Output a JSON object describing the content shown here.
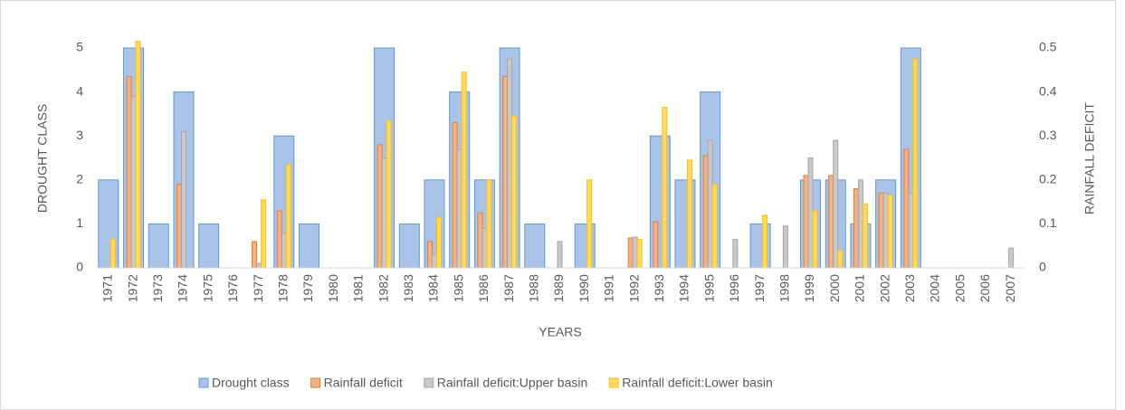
{
  "chart_data": {
    "type": "bar",
    "categories": [
      "1971",
      "1972",
      "1973",
      "1974",
      "1975",
      "1976",
      "1977",
      "1978",
      "1979",
      "1980",
      "1981",
      "1982",
      "1983",
      "1984",
      "1985",
      "1986",
      "1987",
      "1988",
      "1989",
      "1990",
      "1991",
      "1992",
      "1993",
      "1994",
      "1995",
      "1996",
      "1997",
      "1998",
      "1999",
      "2000",
      "2001",
      "2002",
      "2003",
      "2004",
      "2005",
      "2006",
      "2007"
    ],
    "x_label": "YEARS",
    "y_label": "DROUGHT CLASS",
    "y2_label": "RAINFALL DEFICIT",
    "ylim": [
      0,
      5
    ],
    "yticks": [
      0,
      1,
      2,
      3,
      4,
      5
    ],
    "y2lim": [
      0,
      0.5
    ],
    "y2ticks": [
      0,
      0.1,
      0.2,
      0.3,
      0.4,
      0.5
    ],
    "legend": "bottom",
    "series": [
      {
        "name": "Drought class",
        "color": "#a9c4e8",
        "values": [
          2,
          5,
          1,
          4,
          1,
          0,
          0,
          3,
          1,
          0,
          0,
          5,
          1,
          2,
          4,
          2,
          5,
          1,
          0,
          1,
          0,
          0,
          3,
          2,
          4,
          0,
          1,
          0,
          2,
          2,
          1,
          2,
          5,
          0,
          0,
          0,
          0
        ]
      },
      {
        "name": "Rainfall deficit",
        "color": "#f4b183",
        "axis": "y2",
        "values": [
          null,
          0.435,
          null,
          0.19,
          null,
          null,
          0.06,
          0.13,
          null,
          null,
          null,
          0.28,
          null,
          0.06,
          0.33,
          0.125,
          0.435,
          null,
          null,
          null,
          null,
          0.068,
          0.105,
          null,
          0.255,
          null,
          null,
          null,
          0.21,
          0.21,
          0.18,
          0.17,
          0.27,
          null,
          null,
          null,
          null
        ]
      },
      {
        "name": "Rainfall deficit:Upper basin",
        "color": "#c9c9c9",
        "axis": "y2",
        "values": [
          null,
          0.39,
          null,
          0.31,
          null,
          null,
          0.01,
          0.08,
          null,
          null,
          null,
          0.25,
          null,
          0.03,
          0.27,
          0.09,
          0.475,
          null,
          0.06,
          null,
          null,
          0.07,
          null,
          null,
          0.29,
          0.065,
          null,
          0.095,
          0.25,
          0.29,
          0.2,
          0.17,
          0.17,
          null,
          null,
          null,
          0.045
        ]
      },
      {
        "name": "Rainfall deficit:Lower basin",
        "color": "#ffd966",
        "axis": "y2",
        "values": [
          0.065,
          0.515,
          null,
          null,
          null,
          null,
          0.155,
          0.235,
          null,
          null,
          null,
          0.335,
          null,
          0.115,
          0.445,
          0.2,
          0.345,
          null,
          null,
          0.2,
          null,
          0.065,
          0.365,
          0.245,
          0.19,
          null,
          0.12,
          null,
          0.13,
          0.04,
          0.145,
          0.165,
          0.475,
          null,
          null,
          null,
          null
        ]
      }
    ]
  }
}
